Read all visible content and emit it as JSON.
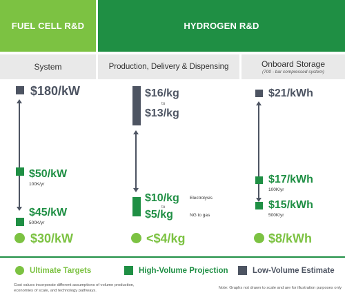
{
  "headers": {
    "fuel_cell": "FUEL CELL R&D",
    "hydrogen": "HYDROGEN R&D"
  },
  "subheaders": {
    "system": "System",
    "production": "Production, Delivery & Dispensing",
    "storage": "Onboard Storage",
    "storage_note": "(700 - bar compressed system)"
  },
  "system": {
    "low_volume": "$180/kW",
    "high_volume_1": "$50/kW",
    "high_volume_1_note": "100K/yr",
    "high_volume_2": "$45/kW",
    "high_volume_2_note": "500K/yr",
    "ultimate": "$30/kW"
  },
  "production": {
    "low_volume_top": "$16/kg",
    "to_1": "to",
    "low_volume_bottom": "$13/kg",
    "high_volume_1": "$10/kg",
    "high_volume_1_note": "Electrolysis",
    "to_2": "to",
    "high_volume_2": "$5/kg",
    "high_volume_2_note": "NG to gas",
    "ultimate": "<$4/kg"
  },
  "storage": {
    "low_volume": "$21/kWh",
    "high_volume_1": "$17/kWh",
    "high_volume_1_note": "100K/yr",
    "high_volume_2": "$15/kWh",
    "high_volume_2_note": "500K/yr",
    "ultimate": "$8/kWh"
  },
  "legend": {
    "ultimate": "Ultimate Targets",
    "high_volume": "High-Volume Projection",
    "low_volume": "Low-Volume Estimate"
  },
  "footnotes": {
    "left": "Cost values incorporate different assumptions of volume production, economies of scale, and technology pathways.",
    "right": "Note: Graphs not drawn to scale and are for illustration purposes only"
  },
  "colors": {
    "light_green": "#7cc242",
    "dark_green": "#1f8f44",
    "gray": "#4d5462"
  }
}
